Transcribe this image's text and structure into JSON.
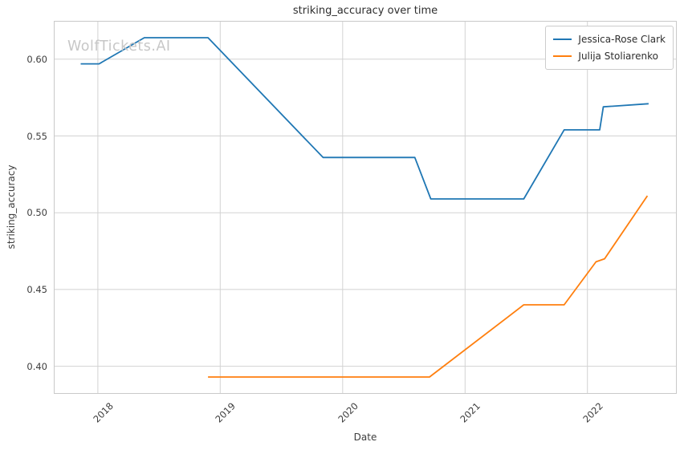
{
  "title": "striking_accuracy over time",
  "watermark": "WolfTickets.AI",
  "axes": {
    "x_label": "Date",
    "y_label": "striking_accuracy"
  },
  "legend": {
    "items": [
      {
        "label": "Jessica-Rose Clark",
        "color": "#1f77b4"
      },
      {
        "label": "Julija Stoliarenko",
        "color": "#ff7f0e"
      }
    ]
  },
  "chart_data": {
    "type": "line",
    "title": "striking_accuracy over time",
    "xlabel": "Date",
    "ylabel": "striking_accuracy",
    "xlim": [
      2017.64,
      2022.73
    ],
    "ylim": [
      0.382,
      0.625
    ],
    "x_ticks": [
      2018,
      2019,
      2020,
      2021,
      2022
    ],
    "x_tick_labels": [
      "2018",
      "2019",
      "2020",
      "2021",
      "2022"
    ],
    "y_ticks": [
      0.4,
      0.45,
      0.5,
      0.55,
      0.6
    ],
    "y_tick_labels": [
      "0.40",
      "0.45",
      "0.50",
      "0.55",
      "0.60"
    ],
    "grid": true,
    "legend_position": "upper right",
    "series": [
      {
        "name": "Jessica-Rose Clark",
        "color": "#1f77b4",
        "points": [
          [
            2017.86,
            0.597
          ],
          [
            2018.01,
            0.597
          ],
          [
            2018.38,
            0.614
          ],
          [
            2018.9,
            0.614
          ],
          [
            2019.84,
            0.536
          ],
          [
            2020.59,
            0.536
          ],
          [
            2020.72,
            0.509
          ],
          [
            2021.48,
            0.509
          ],
          [
            2021.81,
            0.554
          ],
          [
            2022.1,
            0.554
          ],
          [
            2022.13,
            0.569
          ],
          [
            2022.5,
            0.571
          ]
        ]
      },
      {
        "name": "Julija Stoliarenko",
        "color": "#ff7f0e",
        "points": [
          [
            2018.9,
            0.393
          ],
          [
            2020.71,
            0.393
          ],
          [
            2021.48,
            0.44
          ],
          [
            2021.81,
            0.44
          ],
          [
            2022.07,
            0.468
          ],
          [
            2022.14,
            0.47
          ],
          [
            2022.49,
            0.511
          ]
        ]
      }
    ]
  }
}
